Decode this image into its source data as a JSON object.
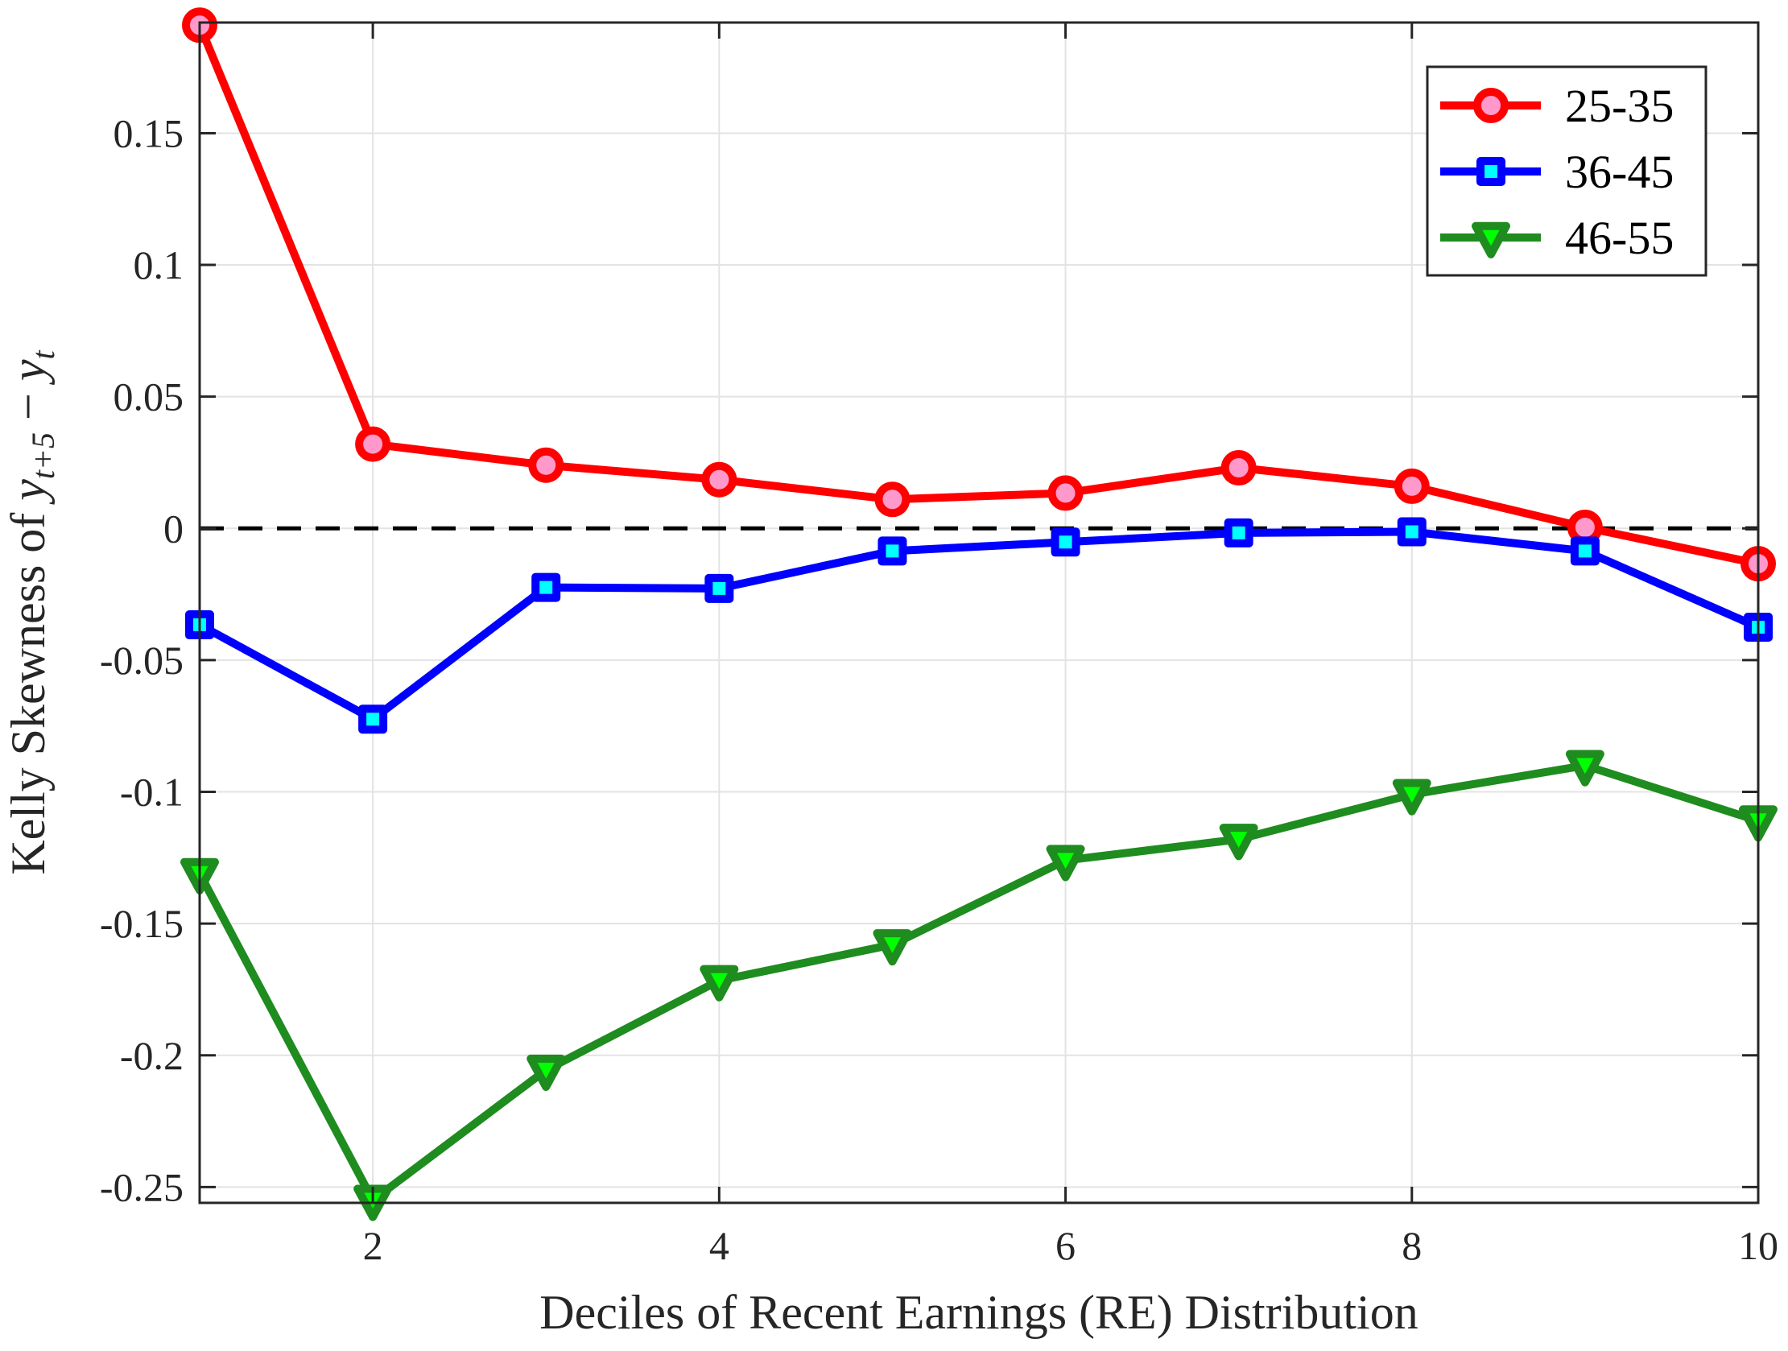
{
  "chart_data": {
    "type": "line",
    "title": "",
    "xlabel": "Deciles of Recent Earnings (RE) Distribution",
    "ylabel_parts": {
      "prefix": "Kelly Skewness of ",
      "y1": "y",
      "sub1": "t+5",
      "minus": " − ",
      "y2": "y",
      "sub2": "t"
    },
    "xlim": [
      1,
      10
    ],
    "ylim": [
      -0.256,
      0.192
    ],
    "xticks": [
      2,
      4,
      6,
      8,
      10
    ],
    "xtick_labels": [
      "2",
      "4",
      "6",
      "8",
      "10"
    ],
    "yticks": [
      -0.25,
      -0.2,
      -0.15,
      -0.1,
      -0.05,
      0,
      0.05,
      0.1,
      0.15
    ],
    "ytick_labels": [
      "-0.25",
      "-0.2",
      "-0.15",
      "-0.1",
      "-0.05",
      "0",
      "0.05",
      "0.1",
      "0.15"
    ],
    "grid": true,
    "legend_position": "top-right",
    "reference_line": {
      "y": 0,
      "style": "dashed",
      "color": "#000000"
    },
    "x": [
      1,
      2,
      3,
      4,
      5,
      6,
      7,
      8,
      9,
      10
    ],
    "series": [
      {
        "name": "25-35",
        "color": "#ff0000",
        "marker": "circle",
        "marker_fill": "#ff99cc",
        "values": [
          0.191,
          0.032,
          0.024,
          0.0185,
          0.011,
          0.0134,
          0.023,
          0.016,
          0.0004,
          -0.0134
        ]
      },
      {
        "name": "36-45",
        "color": "#0000ff",
        "marker": "square",
        "marker_fill": "#00ffff",
        "values": [
          -0.0366,
          -0.0724,
          -0.0224,
          -0.0228,
          -0.0086,
          -0.0052,
          -0.0017,
          -0.0013,
          -0.0086,
          -0.0375
        ]
      },
      {
        "name": "46-55",
        "color": "#1e8c1e",
        "marker": "triangle-down",
        "marker_fill": "#00ff00",
        "values": [
          -0.131,
          -0.255,
          -0.2056,
          -0.1716,
          -0.158,
          -0.126,
          -0.118,
          -0.101,
          -0.09,
          -0.111
        ]
      }
    ]
  }
}
